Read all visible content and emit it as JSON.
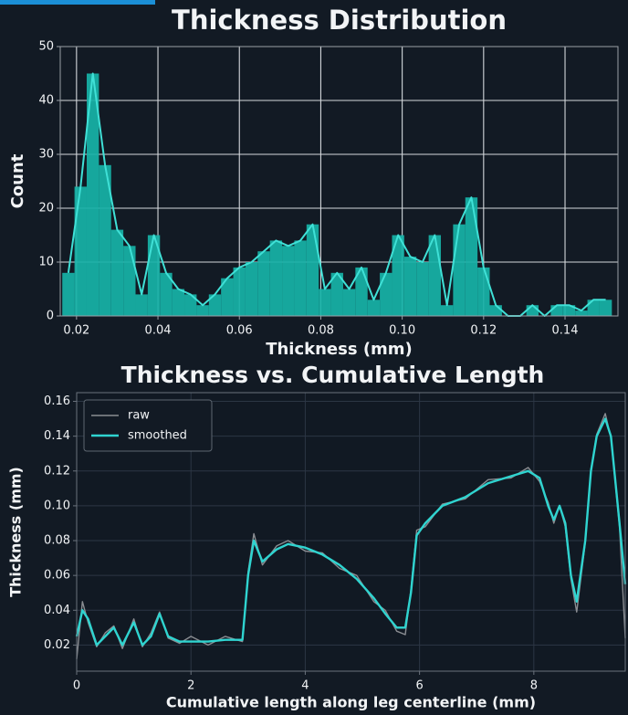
{
  "chart_data": [
    {
      "type": "histogram",
      "title": "Thickness Distribution",
      "xlabel": "Thickness (mm)",
      "ylabel": "Count",
      "bins": [
        0.0165,
        0.0195,
        0.0225,
        0.0255,
        0.0285,
        0.0315,
        0.0345,
        0.0375,
        0.0405,
        0.0435,
        0.0465,
        0.0495,
        0.0525,
        0.0555,
        0.0585,
        0.0615,
        0.0645,
        0.0675,
        0.0705,
        0.0735,
        0.0765,
        0.0795,
        0.0825,
        0.0855,
        0.0885,
        0.0915,
        0.0945,
        0.0975,
        0.1005,
        0.1035,
        0.1065,
        0.1095,
        0.1125,
        0.1155,
        0.1185,
        0.1215,
        0.1245,
        0.1275,
        0.1305,
        0.1335,
        0.1365,
        0.1395,
        0.1425,
        0.1455,
        0.1485,
        0.1515
      ],
      "counts": [
        8,
        24,
        45,
        28,
        16,
        13,
        4,
        15,
        8,
        5,
        4,
        2,
        4,
        7,
        9,
        10,
        12,
        14,
        13,
        14,
        17,
        5,
        8,
        5,
        9,
        3,
        8,
        15,
        11,
        10,
        15,
        2,
        17,
        22,
        9,
        2,
        0,
        0,
        2,
        0,
        2,
        2,
        1,
        3,
        3
      ],
      "color": "#17b3a8",
      "line_color": "#3fe0d6",
      "xlim": [
        0.016,
        0.153
      ],
      "ylim": [
        0,
        50
      ],
      "xticks": [
        0.02,
        0.04,
        0.06,
        0.08,
        {
          "value": 0.1,
          "label": "0.10"
        },
        0.12,
        0.14
      ],
      "yticks": [
        0,
        10,
        20,
        30,
        40,
        50
      ],
      "grid": true
    },
    {
      "type": "line",
      "title": "Thickness vs. Cumulative Length",
      "xlabel": "Cumulative length along leg centerline (mm)",
      "ylabel": "Thickness (mm)",
      "x": [
        0,
        0.1,
        0.2,
        0.35,
        0.5,
        0.65,
        0.8,
        1.0,
        1.15,
        1.3,
        1.45,
        1.6,
        1.8,
        2.0,
        2.3,
        2.6,
        2.9,
        3.0,
        3.1,
        3.25,
        3.5,
        3.7,
        4.0,
        4.3,
        4.6,
        4.9,
        5.2,
        5.4,
        5.6,
        5.75,
        5.85,
        5.95,
        6.1,
        6.4,
        6.8,
        7.2,
        7.6,
        7.9,
        8.1,
        8.25,
        8.35,
        8.45,
        8.55,
        8.65,
        8.75,
        8.9,
        9.0,
        9.1,
        9.25,
        9.35,
        9.5,
        9.6
      ],
      "series": [
        {
          "name": "raw",
          "color": "#8a8d92",
          "values": [
            0.012,
            0.045,
            0.033,
            0.019,
            0.027,
            0.031,
            0.018,
            0.035,
            0.019,
            0.027,
            0.039,
            0.024,
            0.021,
            0.025,
            0.02,
            0.025,
            0.022,
            0.062,
            0.084,
            0.066,
            0.077,
            0.08,
            0.074,
            0.073,
            0.064,
            0.06,
            0.045,
            0.04,
            0.028,
            0.026,
            0.052,
            0.086,
            0.088,
            0.101,
            0.104,
            0.115,
            0.116,
            0.122,
            0.114,
            0.102,
            0.09,
            0.1,
            0.088,
            0.058,
            0.039,
            0.079,
            0.121,
            0.141,
            0.153,
            0.139,
            0.088,
            0.024
          ]
        },
        {
          "name": "smoothed",
          "color": "#2fd4d0",
          "values": [
            0.025,
            0.04,
            0.035,
            0.02,
            0.025,
            0.03,
            0.02,
            0.033,
            0.02,
            0.025,
            0.038,
            0.025,
            0.022,
            0.022,
            0.022,
            0.023,
            0.023,
            0.06,
            0.08,
            0.068,
            0.075,
            0.078,
            0.076,
            0.072,
            0.066,
            0.058,
            0.047,
            0.038,
            0.03,
            0.03,
            0.05,
            0.083,
            0.09,
            0.1,
            0.105,
            0.113,
            0.117,
            0.12,
            0.116,
            0.1,
            0.092,
            0.1,
            0.09,
            0.06,
            0.045,
            0.08,
            0.12,
            0.14,
            0.15,
            0.14,
            0.09,
            0.055
          ]
        }
      ],
      "xlim": [
        0,
        9.6
      ],
      "ylim": [
        0.005,
        0.165
      ],
      "xticks": [
        0,
        2,
        4,
        6,
        8
      ],
      "yticks": [
        0.02,
        0.04,
        0.06,
        0.08,
        {
          "value": 0.1,
          "label": "0.10"
        },
        0.12,
        0.14,
        0.16
      ],
      "grid": true,
      "legend": "upper left"
    }
  ]
}
